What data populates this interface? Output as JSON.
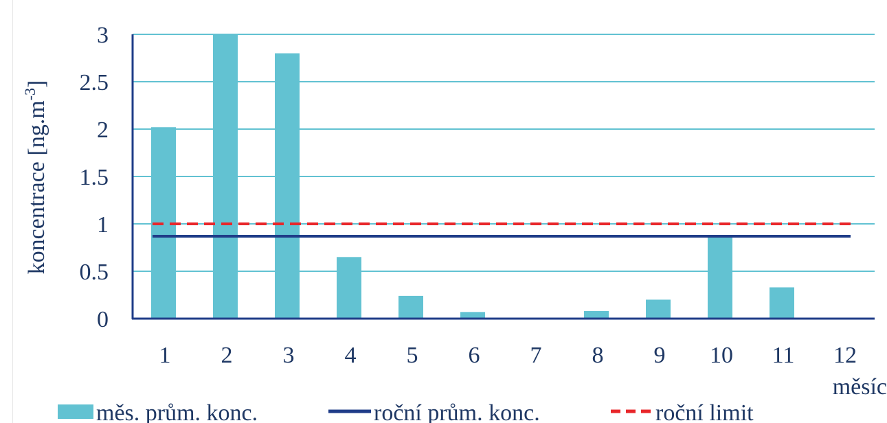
{
  "chart_data": {
    "type": "bar",
    "categories": [
      "1",
      "2",
      "3",
      "4",
      "5",
      "6",
      "7",
      "8",
      "9",
      "10",
      "11",
      "12"
    ],
    "series": [
      {
        "name": "měs. prům. konc.",
        "kind": "bar",
        "values": [
          2.02,
          3.0,
          2.8,
          0.65,
          0.24,
          0.07,
          0.0,
          0.08,
          0.2,
          0.87,
          0.33,
          0.0
        ]
      },
      {
        "name": "roční prům. konc.",
        "kind": "line",
        "values": [
          0.87,
          0.87,
          0.87,
          0.87,
          0.87,
          0.87,
          0.87,
          0.87,
          0.87,
          0.87,
          0.87,
          0.87
        ]
      },
      {
        "name": "roční limit",
        "kind": "line-dashed",
        "values": [
          1,
          1,
          1,
          1,
          1,
          1,
          1,
          1,
          1,
          1,
          1,
          1
        ]
      }
    ],
    "yticks": [
      "0",
      "0.5",
      "1",
      "1.5",
      "2",
      "2.5",
      "3"
    ],
    "ylim": [
      0,
      3
    ],
    "ylabel": "koncentrace [ng.m-3]",
    "ylabel_main": "koncentrace [ng.m",
    "ylabel_sup": "-3",
    "ylabel_close": "]",
    "xlabel": "měsíc",
    "grid": true,
    "legend_position": "bottom",
    "colors": {
      "bar": "#62c2d2",
      "avg_line": "#1f3c88",
      "limit_line": "#e8262a",
      "grid": "#62c2d2",
      "axis": "#1f3c88",
      "text": "#1f3864"
    }
  }
}
